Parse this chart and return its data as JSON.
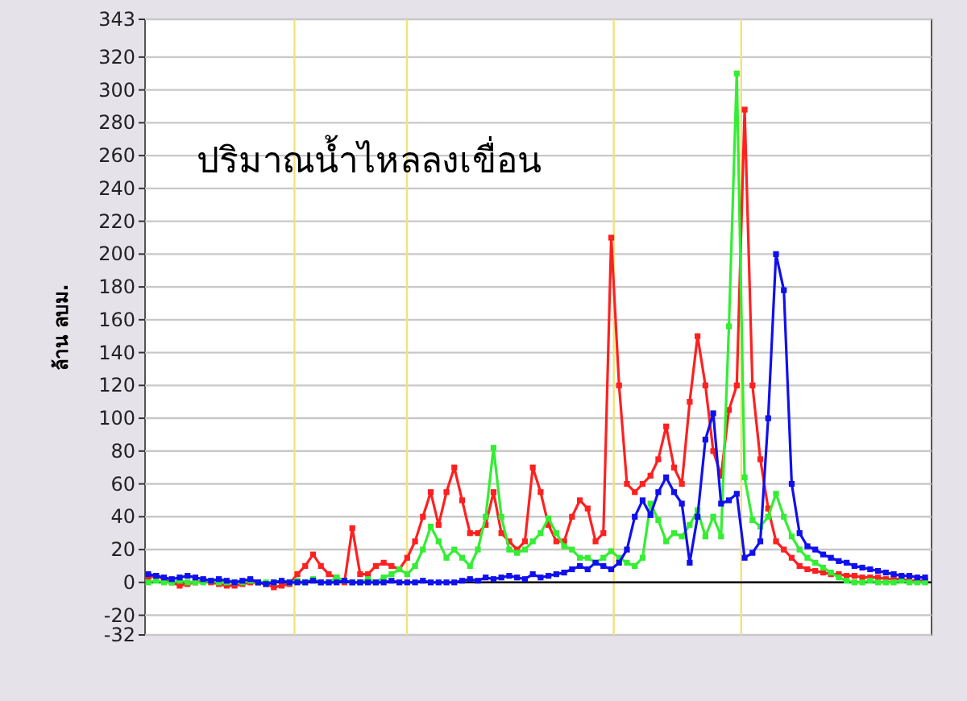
{
  "chart_data": {
    "type": "line",
    "title": "ปริมาณน้ำไหลลงเขื่อน",
    "ylabel": "ล้าน ลบม.",
    "categories": [
      null,
      null,
      null,
      null,
      null,
      null,
      null,
      null,
      null,
      null,
      null,
      null,
      null,
      null,
      null,
      null,
      null,
      null,
      null,
      null,
      null,
      null,
      null,
      null,
      null,
      null,
      null,
      null,
      null,
      null,
      null,
      null,
      null,
      null,
      null,
      null,
      null,
      null,
      null,
      null,
      null,
      null,
      null,
      null,
      null,
      null,
      null,
      null,
      null,
      null,
      null,
      null,
      null,
      null,
      null,
      null,
      null,
      null,
      null,
      null,
      null,
      null,
      null,
      null,
      null,
      null,
      null,
      null,
      null,
      null,
      null,
      null,
      null,
      null,
      null,
      null,
      null,
      null,
      null,
      null,
      null,
      null,
      null,
      null,
      null,
      null,
      null,
      null,
      null,
      null,
      null,
      null,
      null,
      null,
      null,
      null,
      null,
      null,
      null,
      null
    ],
    "series": [
      {
        "color": "#ff2020",
        "values": [
          3,
          4,
          2,
          0,
          -2,
          -1,
          0,
          1,
          0,
          -1,
          -2,
          -2,
          -1,
          0,
          0,
          -1,
          -3,
          -2,
          -1,
          5,
          10,
          17,
          10,
          5,
          3,
          0,
          33,
          5,
          5,
          10,
          12,
          10,
          8,
          15,
          25,
          40,
          55,
          35,
          55,
          70,
          50,
          30,
          30,
          35,
          55,
          30,
          25,
          20,
          25,
          70,
          55,
          35,
          25,
          25,
          40,
          50,
          45,
          25,
          30,
          210,
          120,
          60,
          55,
          60,
          65,
          75,
          95,
          70,
          60,
          110,
          150,
          120,
          80,
          65,
          105,
          120,
          288,
          120,
          75,
          45,
          25,
          20,
          15,
          10,
          8,
          7,
          6,
          5,
          5,
          4,
          4,
          3,
          3,
          3,
          2,
          2,
          2,
          1,
          1,
          1
        ]
      },
      {
        "color": "#33ee33",
        "values": [
          0,
          1,
          0,
          0,
          1,
          0,
          0,
          0,
          1,
          0,
          0,
          0,
          0,
          1,
          0,
          0,
          0,
          null,
          0,
          1,
          0,
          2,
          0,
          0,
          3,
          1,
          0,
          0,
          2,
          0,
          3,
          5,
          8,
          5,
          10,
          20,
          34,
          25,
          15,
          20,
          15,
          10,
          20,
          40,
          82,
          40,
          20,
          18,
          20,
          25,
          30,
          39,
          30,
          22,
          20,
          15,
          15,
          12,
          15,
          19,
          15,
          12,
          10,
          15,
          48,
          38,
          25,
          30,
          28,
          35,
          44,
          28,
          40,
          28,
          156,
          310,
          64,
          38,
          34,
          40,
          54,
          40,
          28,
          20,
          15,
          12,
          9,
          6,
          3,
          1,
          0,
          0,
          1,
          0,
          0,
          0,
          1,
          0,
          0,
          0
        ]
      },
      {
        "color": "#1010ee",
        "values": [
          5,
          4,
          3,
          2,
          3,
          4,
          3,
          2,
          1,
          2,
          1,
          0,
          1,
          2,
          0,
          -1,
          0,
          1,
          0,
          0,
          0,
          1,
          0,
          0,
          0,
          1,
          0,
          0,
          0,
          0,
          0,
          1,
          0,
          0,
          0,
          1,
          0,
          0,
          0,
          0,
          1,
          2,
          1,
          3,
          2,
          3,
          4,
          3,
          2,
          5,
          3,
          4,
          5,
          6,
          8,
          10,
          8,
          12,
          10,
          8,
          12,
          20,
          40,
          50,
          41,
          55,
          64,
          55,
          48,
          12,
          40,
          87,
          103,
          48,
          50,
          54,
          15,
          18,
          25,
          100,
          200,
          178,
          60,
          30,
          22,
          20,
          17,
          15,
          13,
          12,
          10,
          9,
          8,
          7,
          6,
          5,
          4,
          4,
          3,
          3
        ]
      }
    ],
    "ylim": [
      -32,
      343
    ],
    "yticks": [
      -32,
      -20,
      0,
      20,
      40,
      60,
      80,
      100,
      120,
      140,
      160,
      180,
      200,
      220,
      240,
      260,
      280,
      300,
      320,
      343
    ],
    "grid": "y",
    "marker": "square",
    "ref_lines": [
      {
        "axis": "y",
        "value": 0,
        "color": "#000000"
      }
    ]
  }
}
